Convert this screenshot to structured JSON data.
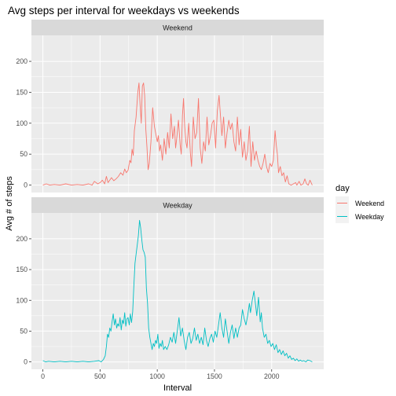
{
  "chart_data": {
    "type": "line",
    "title": "Avg steps per interval for weekdays vs weekends",
    "xlabel": "Interval",
    "ylabel": "Avg # of steps",
    "xlim": [
      -100,
      2455
    ],
    "ylim": [
      -12,
      242
    ],
    "x_ticks": [
      0,
      500,
      1000,
      1500,
      2000
    ],
    "y_ticks": [
      0,
      50,
      100,
      150,
      200
    ],
    "grid": true,
    "legend": {
      "title": "day",
      "position": "right"
    },
    "panels": [
      {
        "strip": "Weekend",
        "series": "Weekend"
      },
      {
        "strip": "Weekday",
        "series": "Weekday"
      }
    ],
    "series": [
      {
        "name": "Weekend",
        "color": "#F8766D",
        "points": [
          [
            0,
            0
          ],
          [
            30,
            2
          ],
          [
            60,
            0
          ],
          [
            100,
            1
          ],
          [
            150,
            0
          ],
          [
            200,
            2
          ],
          [
            250,
            0
          ],
          [
            300,
            1
          ],
          [
            350,
            0
          ],
          [
            400,
            2
          ],
          [
            430,
            0
          ],
          [
            450,
            6
          ],
          [
            480,
            2
          ],
          [
            500,
            4
          ],
          [
            520,
            8
          ],
          [
            540,
            2
          ],
          [
            555,
            14
          ],
          [
            570,
            4
          ],
          [
            585,
            8
          ],
          [
            600,
            12
          ],
          [
            620,
            7
          ],
          [
            640,
            10
          ],
          [
            660,
            14
          ],
          [
            680,
            20
          ],
          [
            700,
            16
          ],
          [
            715,
            26
          ],
          [
            730,
            20
          ],
          [
            745,
            24
          ],
          [
            760,
            40
          ],
          [
            770,
            36
          ],
          [
            780,
            58
          ],
          [
            790,
            48
          ],
          [
            800,
            88
          ],
          [
            815,
            110
          ],
          [
            830,
            150
          ],
          [
            840,
            165
          ],
          [
            850,
            130
          ],
          [
            860,
            100
          ],
          [
            870,
            160
          ],
          [
            880,
            165
          ],
          [
            890,
            145
          ],
          [
            900,
            90
          ],
          [
            910,
            60
          ],
          [
            920,
            25
          ],
          [
            930,
            35
          ],
          [
            945,
            70
          ],
          [
            960,
            125
          ],
          [
            975,
            95
          ],
          [
            990,
            80
          ],
          [
            1000,
            70
          ],
          [
            1010,
            80
          ],
          [
            1020,
            55
          ],
          [
            1030,
            65
          ],
          [
            1045,
            40
          ],
          [
            1060,
            75
          ],
          [
            1075,
            50
          ],
          [
            1090,
            85
          ],
          [
            1105,
            60
          ],
          [
            1120,
            115
          ],
          [
            1135,
            75
          ],
          [
            1150,
            95
          ],
          [
            1160,
            60
          ],
          [
            1170,
            75
          ],
          [
            1185,
            105
          ],
          [
            1200,
            65
          ],
          [
            1210,
            50
          ],
          [
            1220,
            112
          ],
          [
            1230,
            140
          ],
          [
            1240,
            95
          ],
          [
            1250,
            70
          ],
          [
            1260,
            60
          ],
          [
            1275,
            100
          ],
          [
            1290,
            50
          ],
          [
            1300,
            30
          ],
          [
            1315,
            110
          ],
          [
            1330,
            75
          ],
          [
            1345,
            85
          ],
          [
            1360,
            140
          ],
          [
            1375,
            60
          ],
          [
            1390,
            35
          ],
          [
            1405,
            70
          ],
          [
            1420,
            55
          ],
          [
            1435,
            110
          ],
          [
            1450,
            65
          ],
          [
            1465,
            80
          ],
          [
            1480,
            100
          ],
          [
            1495,
            105
          ],
          [
            1510,
            60
          ],
          [
            1525,
            120
          ],
          [
            1540,
            145
          ],
          [
            1555,
            105
          ],
          [
            1565,
            80
          ],
          [
            1580,
            110
          ],
          [
            1595,
            60
          ],
          [
            1610,
            85
          ],
          [
            1625,
            105
          ],
          [
            1640,
            90
          ],
          [
            1655,
            100
          ],
          [
            1670,
            70
          ],
          [
            1685,
            55
          ],
          [
            1700,
            110
          ],
          [
            1715,
            65
          ],
          [
            1730,
            90
          ],
          [
            1745,
            45
          ],
          [
            1760,
            70
          ],
          [
            1775,
            40
          ],
          [
            1790,
            55
          ],
          [
            1805,
            95
          ],
          [
            1820,
            30
          ],
          [
            1835,
            70
          ],
          [
            1850,
            40
          ],
          [
            1865,
            55
          ],
          [
            1880,
            40
          ],
          [
            1895,
            30
          ],
          [
            1910,
            25
          ],
          [
            1925,
            35
          ],
          [
            1940,
            50
          ],
          [
            1955,
            30
          ],
          [
            1970,
            20
          ],
          [
            1985,
            35
          ],
          [
            2000,
            30
          ],
          [
            2015,
            40
          ],
          [
            2030,
            88
          ],
          [
            2040,
            65
          ],
          [
            2050,
            50
          ],
          [
            2060,
            20
          ],
          [
            2075,
            30
          ],
          [
            2090,
            15
          ],
          [
            2105,
            20
          ],
          [
            2120,
            5
          ],
          [
            2135,
            15
          ],
          [
            2150,
            2
          ],
          [
            2170,
            0
          ],
          [
            2190,
            2
          ],
          [
            2210,
            4
          ],
          [
            2220,
            0
          ],
          [
            2240,
            6
          ],
          [
            2255,
            0
          ],
          [
            2275,
            2
          ],
          [
            2290,
            10
          ],
          [
            2305,
            2
          ],
          [
            2320,
            0
          ],
          [
            2335,
            8
          ],
          [
            2355,
            0
          ]
        ]
      },
      {
        "name": "Weekday",
        "color": "#00BFC4",
        "points": [
          [
            0,
            2
          ],
          [
            25,
            0
          ],
          [
            50,
            1
          ],
          [
            100,
            0
          ],
          [
            150,
            1
          ],
          [
            200,
            0
          ],
          [
            250,
            1
          ],
          [
            300,
            0
          ],
          [
            350,
            1
          ],
          [
            400,
            0
          ],
          [
            450,
            1
          ],
          [
            490,
            2
          ],
          [
            510,
            0
          ],
          [
            530,
            4
          ],
          [
            545,
            10
          ],
          [
            555,
            25
          ],
          [
            565,
            45
          ],
          [
            575,
            40
          ],
          [
            585,
            55
          ],
          [
            595,
            50
          ],
          [
            605,
            65
          ],
          [
            615,
            78
          ],
          [
            625,
            60
          ],
          [
            635,
            70
          ],
          [
            645,
            55
          ],
          [
            655,
            62
          ],
          [
            665,
            58
          ],
          [
            675,
            72
          ],
          [
            685,
            52
          ],
          [
            695,
            68
          ],
          [
            705,
            62
          ],
          [
            715,
            80
          ],
          [
            725,
            58
          ],
          [
            735,
            70
          ],
          [
            745,
            72
          ],
          [
            755,
            60
          ],
          [
            765,
            78
          ],
          [
            775,
            64
          ],
          [
            785,
            82
          ],
          [
            795,
            122
          ],
          [
            805,
            160
          ],
          [
            815,
            175
          ],
          [
            825,
            190
          ],
          [
            835,
            205
          ],
          [
            845,
            230
          ],
          [
            855,
            218
          ],
          [
            865,
            198
          ],
          [
            875,
            182
          ],
          [
            885,
            178
          ],
          [
            895,
            170
          ],
          [
            905,
            120
          ],
          [
            915,
            95
          ],
          [
            925,
            55
          ],
          [
            935,
            40
          ],
          [
            945,
            30
          ],
          [
            955,
            20
          ],
          [
            965,
            30
          ],
          [
            975,
            25
          ],
          [
            985,
            35
          ],
          [
            995,
            30
          ],
          [
            1005,
            45
          ],
          [
            1015,
            22
          ],
          [
            1025,
            30
          ],
          [
            1035,
            25
          ],
          [
            1045,
            35
          ],
          [
            1055,
            20
          ],
          [
            1070,
            25
          ],
          [
            1085,
            20
          ],
          [
            1100,
            28
          ],
          [
            1115,
            40
          ],
          [
            1130,
            32
          ],
          [
            1145,
            48
          ],
          [
            1160,
            30
          ],
          [
            1175,
            50
          ],
          [
            1190,
            72
          ],
          [
            1205,
            42
          ],
          [
            1220,
            55
          ],
          [
            1235,
            35
          ],
          [
            1250,
            20
          ],
          [
            1265,
            40
          ],
          [
            1280,
            48
          ],
          [
            1295,
            30
          ],
          [
            1310,
            38
          ],
          [
            1325,
            55
          ],
          [
            1340,
            35
          ],
          [
            1355,
            45
          ],
          [
            1370,
            30
          ],
          [
            1385,
            40
          ],
          [
            1400,
            28
          ],
          [
            1415,
            55
          ],
          [
            1430,
            35
          ],
          [
            1445,
            25
          ],
          [
            1460,
            38
          ],
          [
            1475,
            45
          ],
          [
            1490,
            32
          ],
          [
            1505,
            50
          ],
          [
            1520,
            40
          ],
          [
            1535,
            60
          ],
          [
            1550,
            80
          ],
          [
            1565,
            55
          ],
          [
            1580,
            40
          ],
          [
            1595,
            70
          ],
          [
            1610,
            50
          ],
          [
            1625,
            30
          ],
          [
            1640,
            48
          ],
          [
            1655,
            60
          ],
          [
            1670,
            38
          ],
          [
            1685,
            55
          ],
          [
            1700,
            40
          ],
          [
            1715,
            55
          ],
          [
            1730,
            60
          ],
          [
            1745,
            85
          ],
          [
            1760,
            70
          ],
          [
            1775,
            60
          ],
          [
            1790,
            75
          ],
          [
            1805,
            95
          ],
          [
            1815,
            80
          ],
          [
            1830,
            100
          ],
          [
            1845,
            115
          ],
          [
            1855,
            100
          ],
          [
            1870,
            75
          ],
          [
            1885,
            105
          ],
          [
            1900,
            65
          ],
          [
            1910,
            80
          ],
          [
            1920,
            55
          ],
          [
            1935,
            40
          ],
          [
            1950,
            45
          ],
          [
            1965,
            30
          ],
          [
            1980,
            35
          ],
          [
            1995,
            25
          ],
          [
            2010,
            30
          ],
          [
            2025,
            20
          ],
          [
            2040,
            28
          ],
          [
            2055,
            15
          ],
          [
            2070,
            20
          ],
          [
            2085,
            12
          ],
          [
            2100,
            18
          ],
          [
            2115,
            10
          ],
          [
            2130,
            14
          ],
          [
            2145,
            6
          ],
          [
            2160,
            10
          ],
          [
            2175,
            4
          ],
          [
            2190,
            6
          ],
          [
            2205,
            2
          ],
          [
            2220,
            5
          ],
          [
            2235,
            1
          ],
          [
            2250,
            3
          ],
          [
            2265,
            1
          ],
          [
            2280,
            2
          ],
          [
            2300,
            0
          ],
          [
            2315,
            3
          ],
          [
            2335,
            2
          ],
          [
            2355,
            0
          ]
        ]
      }
    ]
  }
}
